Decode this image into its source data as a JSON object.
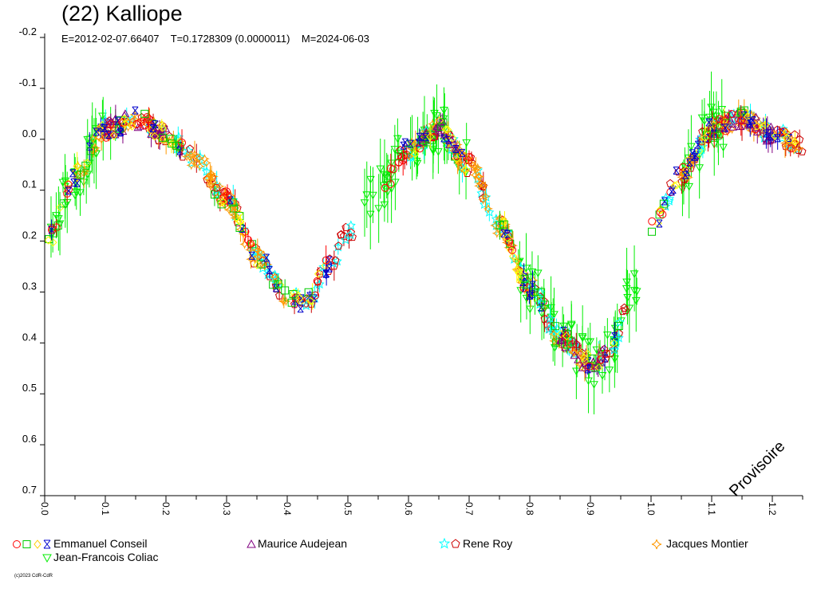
{
  "chart_data": {
    "type": "scatter",
    "title": "(22) Kalliope",
    "subtitle": "E=2012-02-07.66407    T=0.1728309 (0.0000011)    M=2024-06-03",
    "xlim": [
      0.0,
      1.25
    ],
    "ylim": [
      -0.2,
      0.7
    ],
    "y_inverted": true,
    "x_ticks": [
      "0.0",
      "0.1",
      "0.2",
      "0.3",
      "0.4",
      "0.5",
      "0.6",
      "0.7",
      "0.8",
      "0.9",
      "1.0",
      "1.1",
      "1.2"
    ],
    "y_ticks": [
      "-0.2",
      "-0.1",
      "0.0",
      "0.1",
      "0.2",
      "0.3",
      "0.4",
      "0.5",
      "0.6",
      "0.7"
    ],
    "grid": false,
    "legend_placement": "bottom",
    "curve": {
      "phase": [
        0.0,
        0.05,
        0.1,
        0.15,
        0.2,
        0.25,
        0.3,
        0.35,
        0.4,
        0.43,
        0.47,
        0.5,
        0.55,
        0.6,
        0.65,
        0.7,
        0.75,
        0.8,
        0.85,
        0.9,
        0.93,
        0.97,
        1.0,
        1.05,
        1.1,
        1.15,
        1.2,
        1.25
      ],
      "mag": [
        0.21,
        0.07,
        -0.02,
        -0.04,
        -0.01,
        0.04,
        0.12,
        0.23,
        0.31,
        0.32,
        0.25,
        0.18,
        0.1,
        0.02,
        -0.02,
        0.05,
        0.17,
        0.29,
        0.39,
        0.44,
        0.42,
        0.3,
        0.17,
        0.07,
        -0.02,
        -0.04,
        -0.01,
        0.01
      ]
    },
    "series": [
      {
        "name": "Emmanuel Conseil",
        "phase_ranges": [
          [
            0.0,
            0.24
          ],
          [
            0.28,
            0.48
          ],
          [
            0.56,
            0.7
          ],
          [
            0.75,
            0.95
          ],
          [
            1.0,
            1.24
          ]
        ],
        "markers": [
          "circle",
          "square",
          "diamond",
          "hourglass"
        ],
        "colors": [
          "#ff0000",
          "#00cc00",
          "#ffff00",
          "#0000cc"
        ]
      },
      {
        "name": "Maurice Audejean",
        "phase_ranges": [
          [
            0.1,
            0.2
          ],
          [
            0.62,
            0.68
          ],
          [
            0.85,
            0.92
          ],
          [
            1.1,
            1.2
          ]
        ],
        "markers": [
          "triangle"
        ],
        "colors": [
          "#800080"
        ]
      },
      {
        "name": "Rene Roy",
        "phase_ranges": [
          [
            0.1,
            0.52
          ],
          [
            0.58,
            0.96
          ],
          [
            1.02,
            1.25
          ]
        ],
        "markers": [
          "star",
          "pentagon"
        ],
        "colors": [
          "#00ffff",
          "#cc0000"
        ]
      },
      {
        "name": "Jacques Montier",
        "phase_ranges": [
          [
            0.05,
            0.4
          ],
          [
            0.6,
            0.92
          ],
          [
            1.05,
            1.25
          ]
        ],
        "markers": [
          "cross"
        ],
        "colors": [
          "#ff9900"
        ]
      },
      {
        "name": "Jean-Francois Coliac",
        "phase_ranges": [
          [
            0.0,
            0.12
          ],
          [
            0.52,
            0.7
          ],
          [
            0.78,
            0.98
          ],
          [
            1.04,
            1.12
          ]
        ],
        "markers": [
          "triangle-down"
        ],
        "colors": [
          "#00ee00"
        ]
      }
    ]
  },
  "legend": [
    {
      "label": "Emmanuel Conseil"
    },
    {
      "label": "Maurice Audejean"
    },
    {
      "label": "Rene Roy"
    },
    {
      "label": "Jacques Montier"
    },
    {
      "label": "Jean-Francois Coliac"
    }
  ],
  "watermark": "Provisoire",
  "copyright": "(c)2023 CdR-CdR"
}
